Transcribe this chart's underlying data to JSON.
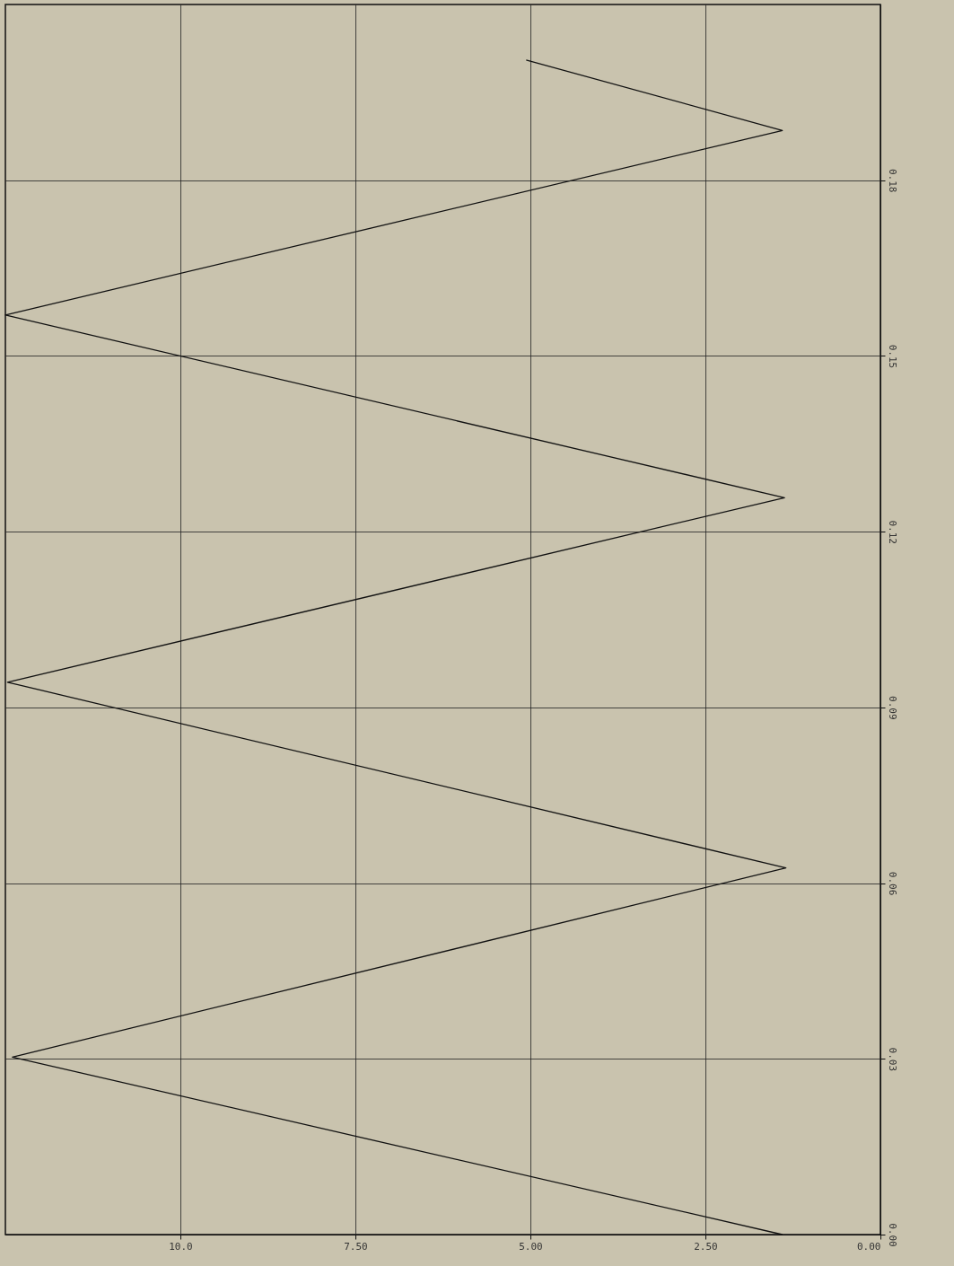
{
  "chart_data": {
    "type": "line",
    "orientation": "horizontal",
    "x": [
      0,
      0.0303,
      0.0626,
      0.0943,
      0.1258,
      0.157,
      0.1885,
      0.2005
    ],
    "series": [
      {
        "color": "#111111",
        "values": [
          1.4,
          12.4,
          1.35,
          12.47,
          1.37,
          12.5,
          1.4,
          5.06
        ]
      }
    ],
    "ylim": [
      0,
      0.21
    ],
    "yticks": [
      {
        "value": 0,
        "label": "0.00"
      },
      {
        "value": 0.03,
        "label": "0.03"
      },
      {
        "value": 0.06,
        "label": "0.06"
      },
      {
        "value": 0.09,
        "label": "0.09"
      },
      {
        "value": 0.12,
        "label": "0.12"
      },
      {
        "value": 0.15,
        "label": "0.15"
      },
      {
        "value": 0.18,
        "label": "0.18"
      }
    ],
    "xlim": [
      12.5,
      0
    ],
    "xticks": [
      {
        "value": 0,
        "label": "0.00"
      },
      {
        "value": 2.5,
        "label": "2.50"
      },
      {
        "value": 5,
        "label": "5.00"
      },
      {
        "value": 7.5,
        "label": "7.50"
      },
      {
        "value": 10,
        "label": "10.0"
      }
    ],
    "grid": true,
    "marker": "none",
    "line_style": "solid"
  }
}
